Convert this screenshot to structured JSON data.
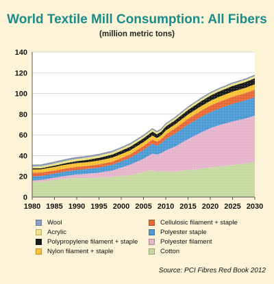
{
  "chart_data": {
    "type": "area",
    "title": "World Textile Mill Consumption: All Fibers",
    "subtitle": "(million metric tons)",
    "xlim": [
      1980,
      2030
    ],
    "ylim": [
      0,
      140
    ],
    "x_ticks": [
      1980,
      1985,
      1990,
      1995,
      2000,
      2005,
      2010,
      2015,
      2020,
      2025,
      2030
    ],
    "y_ticks": [
      0,
      20,
      40,
      60,
      80,
      100,
      120,
      140
    ],
    "x_tick_labels": [
      "1980",
      "1985",
      "1990",
      "1995",
      "2000",
      "2005",
      "2010",
      "2015",
      "2020",
      "2025",
      "2030"
    ],
    "y_tick_labels": [
      "0",
      "20",
      "40",
      "60",
      "80",
      "100",
      "120",
      "140"
    ],
    "grid": "horizontal",
    "stacked": true,
    "x": [
      1980,
      1982,
      1985,
      1988,
      1990,
      1992,
      1995,
      1998,
      2000,
      2002,
      2005,
      2007,
      2008,
      2009,
      2010,
      2012,
      2015,
      2018,
      2020,
      2022,
      2025,
      2028,
      2030
    ],
    "series": [
      {
        "name": "Cotton",
        "color": "#c7d9a2",
        "values": [
          14.5,
          14.8,
          16.5,
          18.0,
          18.5,
          18.5,
          18.8,
          19.5,
          20.5,
          21.5,
          24.0,
          26.0,
          24.0,
          25.0,
          24.5,
          24.5,
          26.0,
          27.5,
          28.5,
          29.5,
          31.0,
          32.5,
          33.5
        ]
      },
      {
        "name": "Polyester filament",
        "color": "#e5b6cb",
        "values": [
          1.5,
          1.7,
          2.2,
          2.8,
          3.3,
          3.9,
          4.8,
          6.2,
          8.0,
          9.8,
          13.0,
          16.0,
          17.0,
          17.5,
          20.5,
          24.0,
          30.0,
          35.0,
          38.0,
          40.0,
          42.0,
          43.5,
          45.0
        ]
      },
      {
        "name": "Polyester staple",
        "color": "#4f9ad1",
        "values": [
          4.0,
          3.9,
          4.0,
          4.2,
          4.4,
          4.6,
          5.0,
          5.5,
          6.0,
          6.6,
          8.5,
          9.5,
          8.5,
          9.5,
          11.0,
          12.5,
          14.0,
          15.0,
          15.5,
          16.0,
          17.0,
          17.5,
          18.0
        ]
      },
      {
        "name": "Cellulosic filament + staple",
        "color": "#e46a3c",
        "values": [
          3.5,
          3.3,
          3.0,
          3.0,
          3.0,
          2.9,
          2.9,
          3.0,
          3.1,
          3.3,
          3.8,
          4.0,
          3.9,
          4.0,
          4.5,
          5.0,
          5.5,
          6.0,
          6.3,
          6.5,
          6.8,
          7.0,
          7.2
        ]
      },
      {
        "name": "Nylon filament + staple",
        "color": "#f6c23a",
        "values": [
          3.2,
          3.1,
          3.4,
          3.6,
          3.6,
          3.6,
          3.8,
          3.9,
          3.9,
          3.9,
          3.8,
          3.9,
          3.6,
          3.6,
          3.8,
          3.9,
          4.2,
          4.4,
          4.6,
          4.8,
          5.0,
          5.1,
          5.2
        ]
      },
      {
        "name": "Polypropylene filament + staple",
        "color": "#1b1b1b",
        "values": [
          1.0,
          1.1,
          1.3,
          1.6,
          1.9,
          2.2,
          2.6,
          3.0,
          3.2,
          3.4,
          3.6,
          3.8,
          3.6,
          3.6,
          3.8,
          4.0,
          4.4,
          4.8,
          5.0,
          5.2,
          5.4,
          5.6,
          5.8
        ]
      },
      {
        "name": "Acrylic",
        "color": "#efe48a",
        "values": [
          1.7,
          1.8,
          2.0,
          2.1,
          2.1,
          2.1,
          2.1,
          2.1,
          2.1,
          2.1,
          1.9,
          1.9,
          1.7,
          1.7,
          1.8,
          1.8,
          1.9,
          2.0,
          2.0,
          2.0,
          2.0,
          2.0,
          2.0
        ]
      },
      {
        "name": "Wool",
        "color": "#8aa0c4",
        "values": [
          1.6,
          1.6,
          1.6,
          1.6,
          1.6,
          1.5,
          1.4,
          1.3,
          1.2,
          1.2,
          1.2,
          1.2,
          1.1,
          1.1,
          1.1,
          1.1,
          1.1,
          1.1,
          1.1,
          1.1,
          1.1,
          1.1,
          1.1
        ]
      }
    ],
    "legend": {
      "placement": "bottom",
      "columns": [
        [
          "Wool",
          "Acrylic",
          "Polypropylene filament + staple",
          "Nylon filament + staple"
        ],
        [
          "Cellulosic filament + staple",
          "Polyester staple",
          "Polyester filament",
          "Cotton"
        ]
      ]
    }
  },
  "source": "Source: PCI Fibres Red Book 2012"
}
